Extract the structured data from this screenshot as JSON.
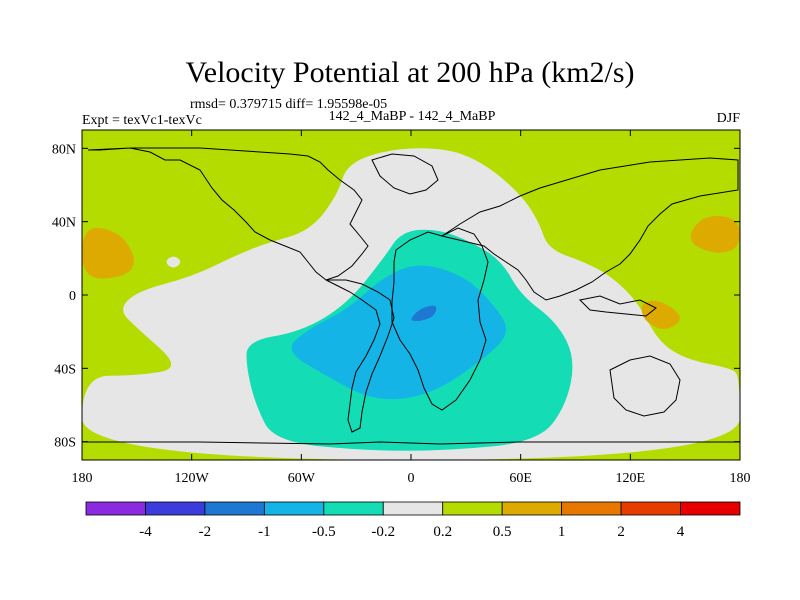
{
  "chart_data": {
    "type": "heatmap",
    "title": "Velocity Potential at 200 hPa (km2/s)",
    "stats_line": "rmsd= 0.379715 diff= 1.95598e-05",
    "left_label": "Expt = texVc1-texVc",
    "center_label": "142_4_MaBP - 142_4_MaBP",
    "right_label": "DJF",
    "x_range": [
      -180,
      180
    ],
    "y_range": [
      -90,
      90
    ],
    "x_ticks": [
      {
        "value": -180,
        "label": "180"
      },
      {
        "value": -120,
        "label": "120W"
      },
      {
        "value": -60,
        "label": "60W"
      },
      {
        "value": 0,
        "label": "0"
      },
      {
        "value": 60,
        "label": "60E"
      },
      {
        "value": 120,
        "label": "120E"
      },
      {
        "value": 180,
        "label": "180"
      }
    ],
    "y_ticks": [
      {
        "value": 80,
        "label": "80N"
      },
      {
        "value": 40,
        "label": "40N"
      },
      {
        "value": 0,
        "label": "0"
      },
      {
        "value": -40,
        "label": "40S"
      },
      {
        "value": -80,
        "label": "80S"
      }
    ],
    "colorbar": {
      "colors": [
        "#8a2be2",
        "#3c3cdc",
        "#1e78d2",
        "#14b4e6",
        "#14dcb4",
        "#e6e6e6",
        "#b4dc00",
        "#dcaa00",
        "#e67800",
        "#e63c00",
        "#e60000"
      ],
      "boundaries": [
        -4,
        -2,
        -1,
        -0.5,
        -0.2,
        0.2,
        0.5,
        1,
        2,
        4
      ],
      "labels": [
        "-4",
        "-2",
        "-1",
        "-0.5",
        "-0.2",
        "0.2",
        "0.5",
        "1",
        "2",
        "4"
      ]
    },
    "fields": [
      {
        "name": "background-field",
        "level": 0.35,
        "color": "#b4dc00",
        "points": []
      },
      {
        "name": "neutral-region-central",
        "level": 0.0,
        "color": "#e6e6e6",
        "points": [
          [
            -125,
            -40
          ],
          [
            -150,
            -18
          ],
          [
            -160,
            -8
          ],
          [
            -150,
            2
          ],
          [
            -120,
            10
          ],
          [
            -95,
            22
          ],
          [
            -80,
            28
          ],
          [
            -55,
            35
          ],
          [
            -40,
            55
          ],
          [
            -35,
            72
          ],
          [
            -10,
            80
          ],
          [
            20,
            80
          ],
          [
            40,
            72
          ],
          [
            60,
            55
          ],
          [
            70,
            40
          ],
          [
            75,
            25
          ],
          [
            95,
            18
          ],
          [
            110,
            10
          ],
          [
            125,
            -5
          ],
          [
            135,
            -25
          ],
          [
            150,
            -35
          ],
          [
            175,
            -40
          ],
          [
            180,
            -44
          ],
          [
            180,
            -90
          ],
          [
            -180,
            -90
          ],
          [
            -180,
            -44
          ],
          [
            -150,
            -44
          ]
        ]
      },
      {
        "name": "neutral-patch-west",
        "level": 0.0,
        "color": "#e6e6e6",
        "points": [
          [
            -135,
            18
          ],
          [
            -130,
            22
          ],
          [
            -125,
            18
          ],
          [
            -130,
            14
          ]
        ]
      },
      {
        "name": "positive-patch-nw-pacific",
        "level": 0.7,
        "color": "#dcaa00",
        "points": [
          [
            -180,
            38
          ],
          [
            -160,
            35
          ],
          [
            -150,
            20
          ],
          [
            -155,
            10
          ],
          [
            -180,
            8
          ]
        ]
      },
      {
        "name": "positive-patch-ne",
        "level": 0.7,
        "color": "#dcaa00",
        "points": [
          [
            180,
            42
          ],
          [
            160,
            44
          ],
          [
            150,
            30
          ],
          [
            165,
            22
          ],
          [
            180,
            25
          ]
        ]
      },
      {
        "name": "positive-patch-e-indian",
        "level": 0.7,
        "color": "#dcaa00",
        "points": [
          [
            125,
            -5
          ],
          [
            135,
            -2
          ],
          [
            150,
            -12
          ],
          [
            140,
            -20
          ],
          [
            128,
            -15
          ]
        ]
      },
      {
        "name": "negative-region-mid",
        "level": -0.35,
        "color": "#14dcb4",
        "points": [
          [
            -90,
            -25
          ],
          [
            -60,
            -20
          ],
          [
            -35,
            -5
          ],
          [
            -15,
            20
          ],
          [
            -5,
            35
          ],
          [
            15,
            36
          ],
          [
            35,
            28
          ],
          [
            50,
            18
          ],
          [
            60,
            0
          ],
          [
            80,
            -15
          ],
          [
            90,
            -35
          ],
          [
            85,
            -60
          ],
          [
            70,
            -80
          ],
          [
            20,
            -85
          ],
          [
            -25,
            -85
          ],
          [
            -75,
            -80
          ],
          [
            -85,
            -60
          ],
          [
            -90,
            -40
          ]
        ]
      },
      {
        "name": "negative-region-core",
        "level": -0.75,
        "color": "#14b4e6",
        "points": [
          [
            -70,
            -30
          ],
          [
            -55,
            -18
          ],
          [
            -35,
            -8
          ],
          [
            -15,
            10
          ],
          [
            5,
            18
          ],
          [
            30,
            10
          ],
          [
            45,
            -5
          ],
          [
            55,
            -20
          ],
          [
            40,
            -35
          ],
          [
            10,
            -55
          ],
          [
            -20,
            -58
          ],
          [
            -45,
            -45
          ]
        ]
      },
      {
        "name": "negative-region-center",
        "level": -1.5,
        "color": "#1e78d2",
        "points": [
          [
            -2,
            -15
          ],
          [
            5,
            -7
          ],
          [
            15,
            -5
          ],
          [
            12,
            -13
          ]
        ]
      }
    ]
  }
}
